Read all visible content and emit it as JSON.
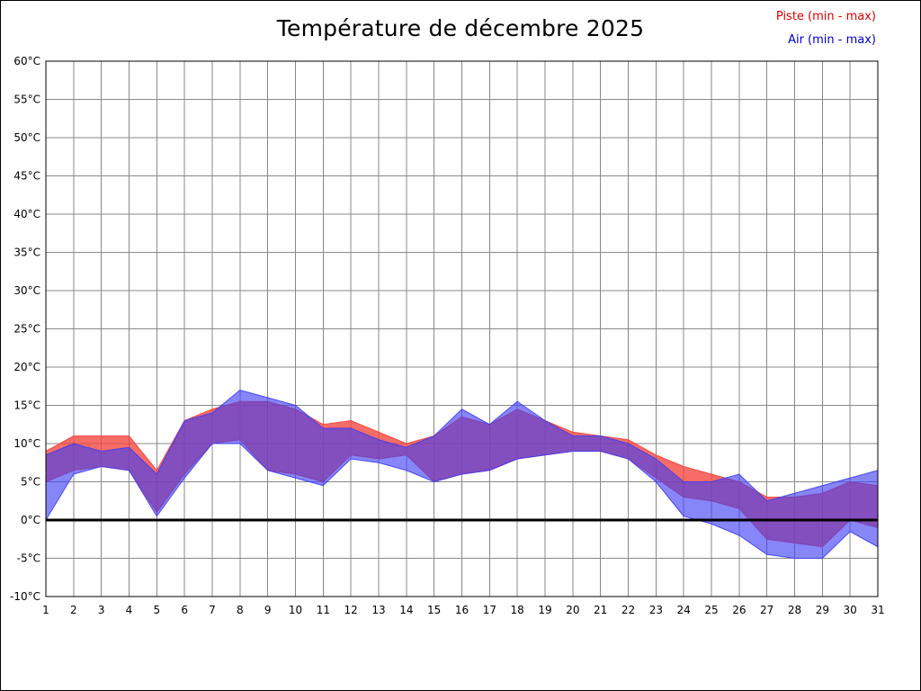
{
  "chart": {
    "title": "Température de décembre 2025",
    "legend": {
      "piste": "Piste (min - max)",
      "air": "Air (min - max)",
      "piste_color": "#dd0000",
      "air_color": "#0000cc"
    }
  },
  "chart_data": {
    "type": "area",
    "title": "Température de décembre 2025",
    "xlabel": "",
    "ylabel": "",
    "ylim": [
      -10,
      60
    ],
    "ytick_step": 5,
    "ytick_suffix": "°C",
    "grid": true,
    "grid_color": "#888888",
    "axis_color": "#000000",
    "legend_position": "top-right",
    "x": [
      1,
      2,
      3,
      4,
      5,
      6,
      7,
      8,
      9,
      10,
      11,
      12,
      13,
      14,
      15,
      16,
      17,
      18,
      19,
      20,
      21,
      22,
      23,
      24,
      25,
      26,
      27,
      28,
      29,
      30,
      31
    ],
    "series": [
      {
        "key": "piste",
        "name": "Piste (min - max)",
        "color": "#f4433c",
        "fill_opacity": 0.78,
        "min": [
          5,
          6.5,
          7,
          6.5,
          1,
          6,
          10,
          10.5,
          6.5,
          6,
          5,
          8.5,
          8,
          8.5,
          5,
          6,
          6.5,
          8,
          8.5,
          9,
          9,
          8,
          5.5,
          3,
          2.5,
          1.5,
          -2.5,
          -3,
          -3.5,
          0,
          -1
        ],
        "max": [
          9,
          11,
          11,
          11,
          6.5,
          13,
          14.5,
          15.5,
          15.5,
          14.5,
          12.5,
          13,
          11.5,
          10,
          11,
          13.5,
          12.5,
          14.5,
          13,
          11.5,
          11,
          10.5,
          8.5,
          7,
          6,
          5,
          3,
          3,
          3.5,
          5,
          4.5
        ]
      },
      {
        "key": "air",
        "name": "Air (min - max)",
        "color": "#3c3cf4",
        "fill_opacity": 0.62,
        "min": [
          0,
          6,
          7,
          6.5,
          0.5,
          5.5,
          10,
          10,
          6.5,
          5.5,
          4.5,
          8,
          7.5,
          6.5,
          5,
          6,
          6.5,
          8,
          8.5,
          9,
          9,
          8,
          5,
          0.5,
          -0.5,
          -2,
          -4.5,
          -5,
          -5,
          -1.5,
          -3.5
        ],
        "max": [
          8.5,
          10,
          9,
          9.5,
          6,
          13,
          14,
          17,
          16,
          15,
          12,
          12,
          10.5,
          9.5,
          11,
          14.5,
          12.5,
          15.5,
          13,
          11,
          11,
          10,
          8,
          5,
          5,
          6,
          2.5,
          3.5,
          4.5,
          5.5,
          6.5
        ]
      }
    ]
  }
}
